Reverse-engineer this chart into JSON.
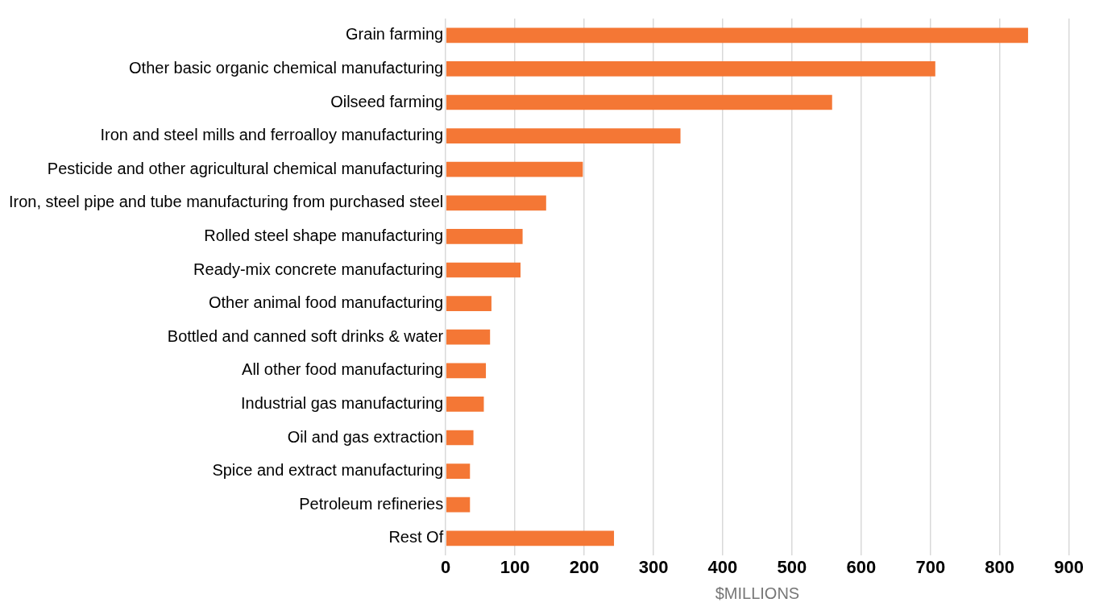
{
  "chart_data": {
    "type": "bar",
    "orientation": "horizontal",
    "xlabel": "$MILLIONS",
    "categories": [
      "Grain farming",
      "Other basic organic chemical manufacturing",
      "Oilseed farming",
      "Iron and steel mills and ferroalloy manufacturing",
      "Pesticide and other agricultural chemical manufacturing",
      "Iron, steel pipe and tube manufacturing from purchased steel",
      "Rolled steel shape manufacturing",
      "Ready-mix concrete manufacturing",
      "Other animal food manufacturing",
      "Bottled and canned soft drinks & water",
      "All other food manufacturing",
      "Industrial gas manufacturing",
      "Oil and gas extraction",
      "Spice and extract manufacturing",
      "Petroleum refineries",
      "Rest Of"
    ],
    "values": [
      841,
      707,
      558,
      339,
      198,
      145,
      111,
      108,
      66,
      64,
      58,
      55,
      40,
      35,
      35,
      243
    ],
    "color": "#f47735",
    "xlim": [
      0,
      900
    ],
    "xticks": [
      0,
      100,
      200,
      300,
      400,
      500,
      600,
      700,
      800,
      900
    ],
    "grid": "x",
    "legend": false
  }
}
